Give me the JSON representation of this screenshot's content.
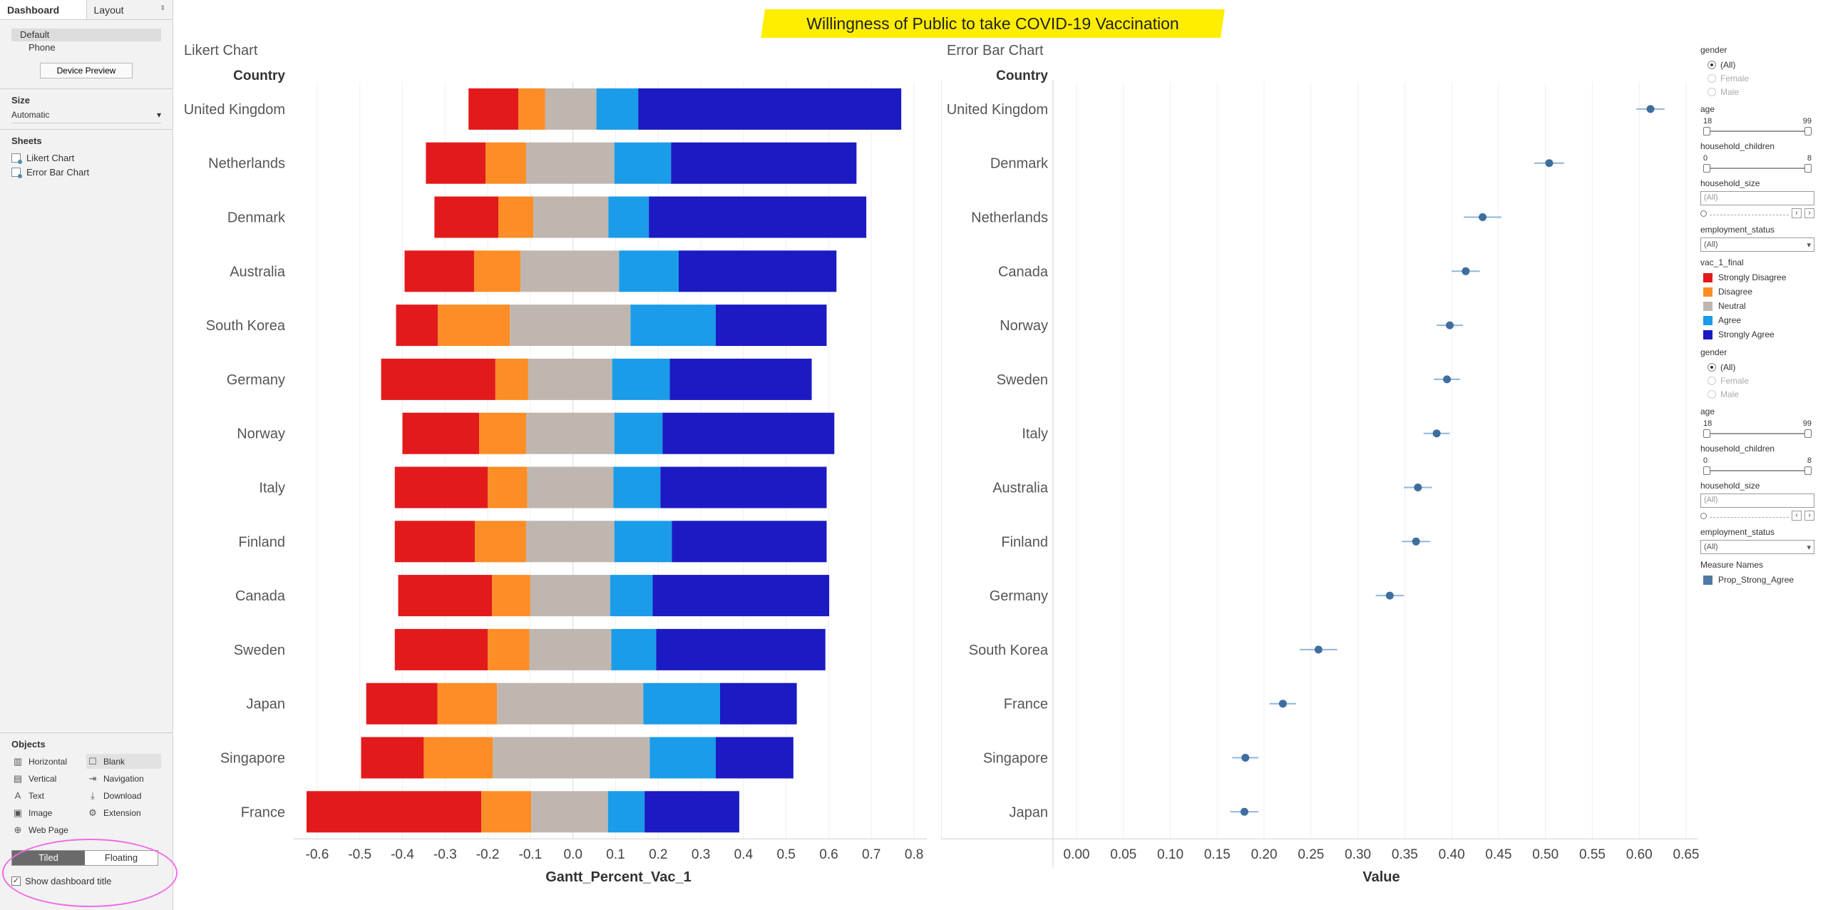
{
  "left_pane": {
    "tabs": {
      "dashboard": "Dashboard",
      "layout": "Layout"
    },
    "devices": [
      "Default",
      "Phone"
    ],
    "device_preview_label": "Device Preview",
    "size": {
      "title": "Size",
      "value": "Automatic"
    },
    "sheets": {
      "title": "Sheets",
      "items": [
        "Likert Chart",
        "Error Bar Chart"
      ]
    },
    "objects": {
      "title": "Objects",
      "items": [
        {
          "label": "Horizontal",
          "icon": "horizontal-container-icon",
          "glyph": "▥"
        },
        {
          "label": "Blank",
          "icon": "blank-icon",
          "glyph": "☐"
        },
        {
          "label": "Vertical",
          "icon": "vertical-container-icon",
          "glyph": "▤"
        },
        {
          "label": "Navigation",
          "icon": "navigation-icon",
          "glyph": "⇥"
        },
        {
          "label": "Text",
          "icon": "text-icon",
          "glyph": "A"
        },
        {
          "label": "Download",
          "icon": "download-icon",
          "glyph": "⤓"
        },
        {
          "label": "Image",
          "icon": "image-icon",
          "glyph": "▣"
        },
        {
          "label": "Extension",
          "icon": "extension-icon",
          "glyph": "⚙"
        },
        {
          "label": "Web Page",
          "icon": "web-page-icon",
          "glyph": "⊕"
        }
      ],
      "tiled_label": "Tiled",
      "floating_label": "Floating",
      "show_title_label": "Show dashboard title",
      "show_title_checked": "✓"
    }
  },
  "title": "Willingness of Public to take COVID-19 Vaccination",
  "likert_panel": {
    "title": "Likert Chart"
  },
  "error_panel": {
    "title": "Error Bar Chart"
  },
  "chart_data": [
    {
      "type": "bar",
      "subtype": "diverging-stacked-gantt",
      "title": "Likert Chart",
      "row_header": "Country",
      "xlabel": "Gantt_Percent_Vac_1",
      "xlim": [
        -0.65,
        0.83
      ],
      "ticks": [
        -0.6,
        -0.5,
        -0.4,
        -0.3,
        -0.2,
        -0.1,
        0.0,
        0.1,
        0.2,
        0.3,
        0.4,
        0.5,
        0.6,
        0.7,
        0.8
      ],
      "tick_labels": [
        "-0.6",
        "-0.5",
        "-0.4",
        "-0.3",
        "-0.2",
        "-0.1",
        "0.0",
        "0.1",
        "0.2",
        "0.3",
        "0.4",
        "0.5",
        "0.6",
        "0.7",
        "0.8"
      ],
      "categories": [
        "United Kingdom",
        "Netherlands",
        "Denmark",
        "Australia",
        "South Korea",
        "Germany",
        "Norway",
        "Italy",
        "Finland",
        "Canada",
        "Sweden",
        "Japan",
        "Singapore",
        "France"
      ],
      "series_names": [
        "Strongly Disagree",
        "Disagree",
        "Neutral",
        "Agree",
        "Strongly Agree"
      ],
      "colors": [
        "#e31a1c",
        "#fd8d26",
        "#bfb6b0",
        "#1b9ce8",
        "#1b1ac3"
      ],
      "segments": [
        [
          -0.245,
          -0.128,
          -0.065,
          0.055,
          0.153,
          0.77
        ],
        [
          -0.345,
          -0.205,
          -0.11,
          0.097,
          0.23,
          0.665
        ],
        [
          -0.325,
          -0.175,
          -0.093,
          0.083,
          0.178,
          0.688
        ],
        [
          -0.395,
          -0.232,
          -0.123,
          0.108,
          0.248,
          0.618
        ],
        [
          -0.415,
          -0.317,
          -0.148,
          0.135,
          0.335,
          0.595
        ],
        [
          -0.45,
          -0.182,
          -0.105,
          0.092,
          0.227,
          0.56
        ],
        [
          -0.4,
          -0.22,
          -0.11,
          0.097,
          0.21,
          0.613
        ],
        [
          -0.418,
          -0.2,
          -0.107,
          0.095,
          0.205,
          0.595
        ],
        [
          -0.418,
          -0.23,
          -0.11,
          0.097,
          0.232,
          0.595
        ],
        [
          -0.41,
          -0.19,
          -0.1,
          0.087,
          0.187,
          0.601
        ],
        [
          -0.418,
          -0.2,
          -0.102,
          0.09,
          0.195,
          0.592
        ],
        [
          -0.485,
          -0.318,
          -0.178,
          0.165,
          0.345,
          0.525
        ],
        [
          -0.497,
          -0.35,
          -0.188,
          0.18,
          0.335,
          0.517
        ],
        [
          -0.625,
          -0.215,
          -0.098,
          0.082,
          0.168,
          0.39
        ]
      ]
    },
    {
      "type": "scatter",
      "subtype": "error-bar",
      "title": "Error Bar Chart",
      "row_header": "Country",
      "xlabel": "Value",
      "xlim": [
        0.0,
        0.65
      ],
      "ticks": [
        0.0,
        0.05,
        0.1,
        0.15,
        0.2,
        0.25,
        0.3,
        0.35,
        0.4,
        0.45,
        0.5,
        0.55,
        0.6,
        0.65
      ],
      "tick_labels": [
        "0.00",
        "0.05",
        "0.10",
        "0.15",
        "0.20",
        "0.25",
        "0.30",
        "0.35",
        "0.40",
        "0.45",
        "0.50",
        "0.55",
        "0.60",
        "0.65"
      ],
      "categories": [
        "United Kingdom",
        "Denmark",
        "Netherlands",
        "Canada",
        "Norway",
        "Sweden",
        "Italy",
        "Australia",
        "Finland",
        "Germany",
        "South Korea",
        "France",
        "Singapore",
        "Japan"
      ],
      "measure": "Prop_Strong_Agree",
      "values": [
        0.612,
        0.504,
        0.433,
        0.415,
        0.398,
        0.395,
        0.384,
        0.364,
        0.362,
        0.334,
        0.258,
        0.22,
        0.18,
        0.179
      ],
      "errors": [
        0.015,
        0.016,
        0.02,
        0.015,
        0.014,
        0.014,
        0.014,
        0.015,
        0.015,
        0.015,
        0.02,
        0.014,
        0.014,
        0.015
      ],
      "point_color": "#3e6e9e",
      "error_color": "#8fb6dc"
    }
  ],
  "filters": {
    "gender": {
      "title": "gender",
      "options": [
        "(All)",
        "Female",
        "Male"
      ]
    },
    "age": {
      "title": "age",
      "min": "18",
      "max": "99"
    },
    "household_children": {
      "title": "household_children",
      "min": "0",
      "max": "8"
    },
    "household_size": {
      "title": "household_size",
      "placeholder": "(All)"
    },
    "employment_status": {
      "title": "employment_status",
      "value": "(All)"
    },
    "vac_legend": {
      "title": "vac_1_final",
      "items": [
        "Strongly Disagree",
        "Disagree",
        "Neutral",
        "Agree",
        "Strongly Agree"
      ],
      "colors": [
        "#e31a1c",
        "#fd8d26",
        "#bfb6b0",
        "#1b9ce8",
        "#1b1ac3"
      ]
    },
    "gender2": {
      "title": "gender",
      "options": [
        "(All)",
        "Female",
        "Male"
      ]
    },
    "age2": {
      "title": "age",
      "min": "18",
      "max": "99"
    },
    "household_children2": {
      "title": "household_children",
      "min": "0",
      "max": "8"
    },
    "household_size2": {
      "title": "household_size",
      "placeholder": "(All)"
    },
    "employment_status2": {
      "title": "employment_status",
      "value": "(All)"
    },
    "measure_legend": {
      "title": "Measure Names",
      "item": "Prop_Strong_Agree",
      "color": "#4e79a7"
    },
    "arrows": {
      "prev": "‹",
      "next": "›",
      "down": "▾"
    }
  }
}
